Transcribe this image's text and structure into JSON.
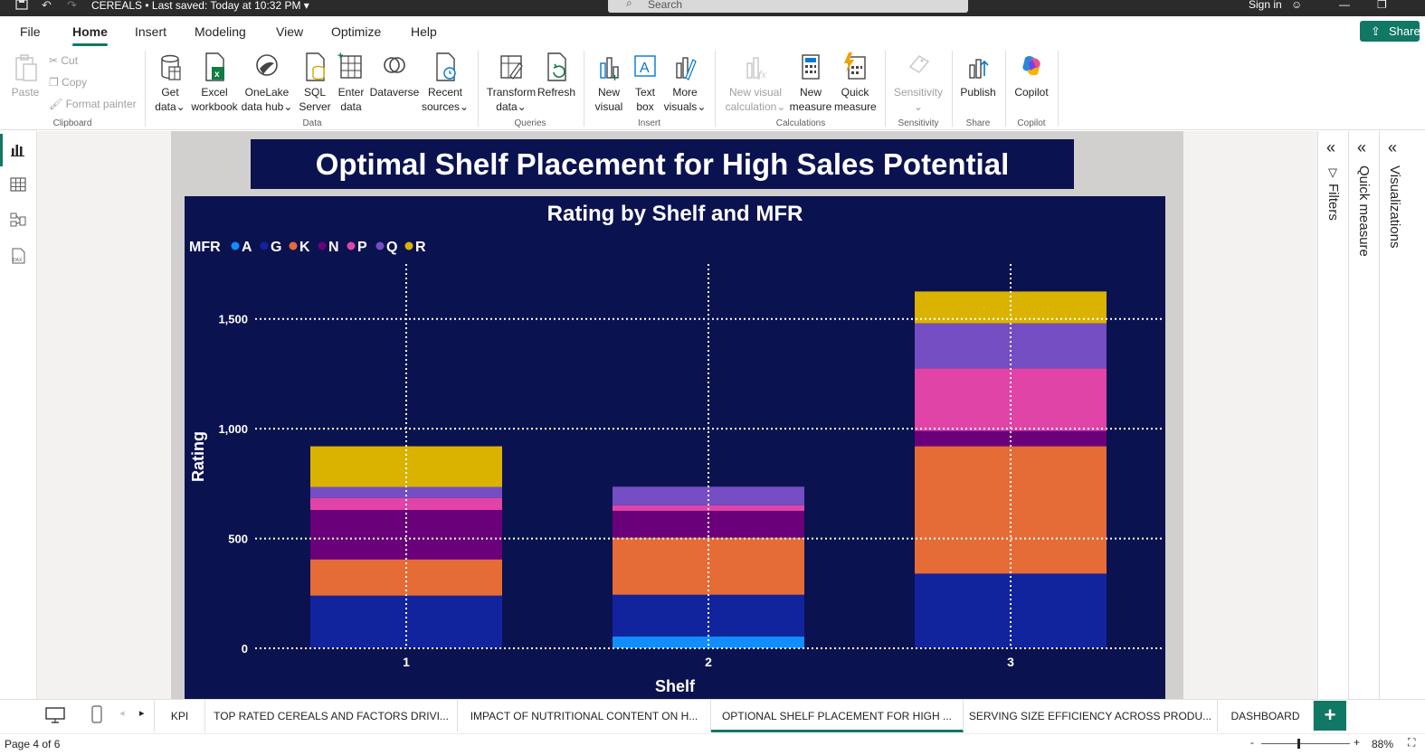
{
  "titlebar": {
    "file_name": "CEREALS",
    "saved": "Last saved: Today at 10:32 PM",
    "search_placeholder": "Search",
    "sign_in": "Sign in"
  },
  "menu": {
    "tabs": [
      "File",
      "Home",
      "Insert",
      "Modeling",
      "View",
      "Optimize",
      "Help"
    ],
    "active": "Home",
    "share": "Share"
  },
  "ribbon": {
    "clipboard": {
      "paste": "Paste",
      "cut": "Cut",
      "copy": "Copy",
      "format_painter": "Format painter",
      "label": "Clipboard"
    },
    "data": {
      "get_data": [
        "Get",
        "data"
      ],
      "excel": [
        "Excel",
        "workbook"
      ],
      "onelake": [
        "OneLake",
        "data hub"
      ],
      "sql": [
        "SQL",
        "Server"
      ],
      "enter": [
        "Enter",
        "data"
      ],
      "dataverse": "Dataverse",
      "recent": [
        "Recent",
        "sources"
      ],
      "label": "Data"
    },
    "queries": {
      "transform": [
        "Transform",
        "data"
      ],
      "refresh": "Refresh",
      "label": "Queries"
    },
    "insert": {
      "new_visual": [
        "New",
        "visual"
      ],
      "text_box": [
        "Text",
        "box"
      ],
      "more_visuals": [
        "More",
        "visuals"
      ],
      "label": "Insert"
    },
    "calculations": {
      "new_visual_calc": [
        "New visual",
        "calculation"
      ],
      "new_measure": [
        "New",
        "measure"
      ],
      "quick_measure": [
        "Quick",
        "measure"
      ],
      "label": "Calculations"
    },
    "sensitivity": {
      "btn": "Sensitivity",
      "label": "Sensitivity"
    },
    "share": {
      "publish": "Publish",
      "label": "Share"
    },
    "copilot": {
      "btn": "Copilot",
      "label": "Copilot"
    }
  },
  "report": {
    "page_title": "Optimal Shelf Placement for High Sales Potential"
  },
  "chart_data": {
    "type": "bar",
    "stacked": true,
    "title": "Rating by Shelf and MFR",
    "legend_title": "MFR",
    "legend_position": "top-left",
    "xlabel": "Shelf",
    "ylabel": "Rating",
    "categories": [
      "1",
      "2",
      "3"
    ],
    "ylim": [
      0,
      1750
    ],
    "yticks": [
      0,
      500,
      1000,
      1500
    ],
    "ytick_labels": [
      "0",
      "500",
      "1,000",
      "1,500"
    ],
    "grid": "dotted",
    "series": [
      {
        "name": "A",
        "color": "#118dff",
        "values": [
          0,
          54,
          0
        ]
      },
      {
        "name": "G",
        "color": "#12239e",
        "values": [
          240,
          190,
          340
        ]
      },
      {
        "name": "K",
        "color": "#e66c37",
        "values": [
          165,
          260,
          580
        ]
      },
      {
        "name": "N",
        "color": "#6b007b",
        "values": [
          225,
          122,
          70
        ]
      },
      {
        "name": "P",
        "color": "#e044a7",
        "values": [
          55,
          25,
          285
        ]
      },
      {
        "name": "Q",
        "color": "#744ec2",
        "values": [
          50,
          85,
          205
        ]
      },
      {
        "name": "R",
        "color": "#d9b300",
        "values": [
          185,
          0,
          145
        ]
      }
    ]
  },
  "right_panes": {
    "filters": "Filters",
    "quick_measure": "Quick measure",
    "visualizations": "Visualizations"
  },
  "page_tabs": {
    "tabs": [
      "KPI",
      "TOP RATED CEREALS AND FACTORS DRIVI...",
      "IMPACT OF NUTRITIONAL CONTENT ON H...",
      "OPTIONAL SHELF PLACEMENT FOR HIGH ...",
      "SERVING SIZE EFFICIENCY ACROSS PRODU...",
      "DASHBOARD"
    ],
    "active_index": 3,
    "add": "+"
  },
  "status": {
    "page": "Page 4 of 6",
    "zoom": "88%"
  }
}
